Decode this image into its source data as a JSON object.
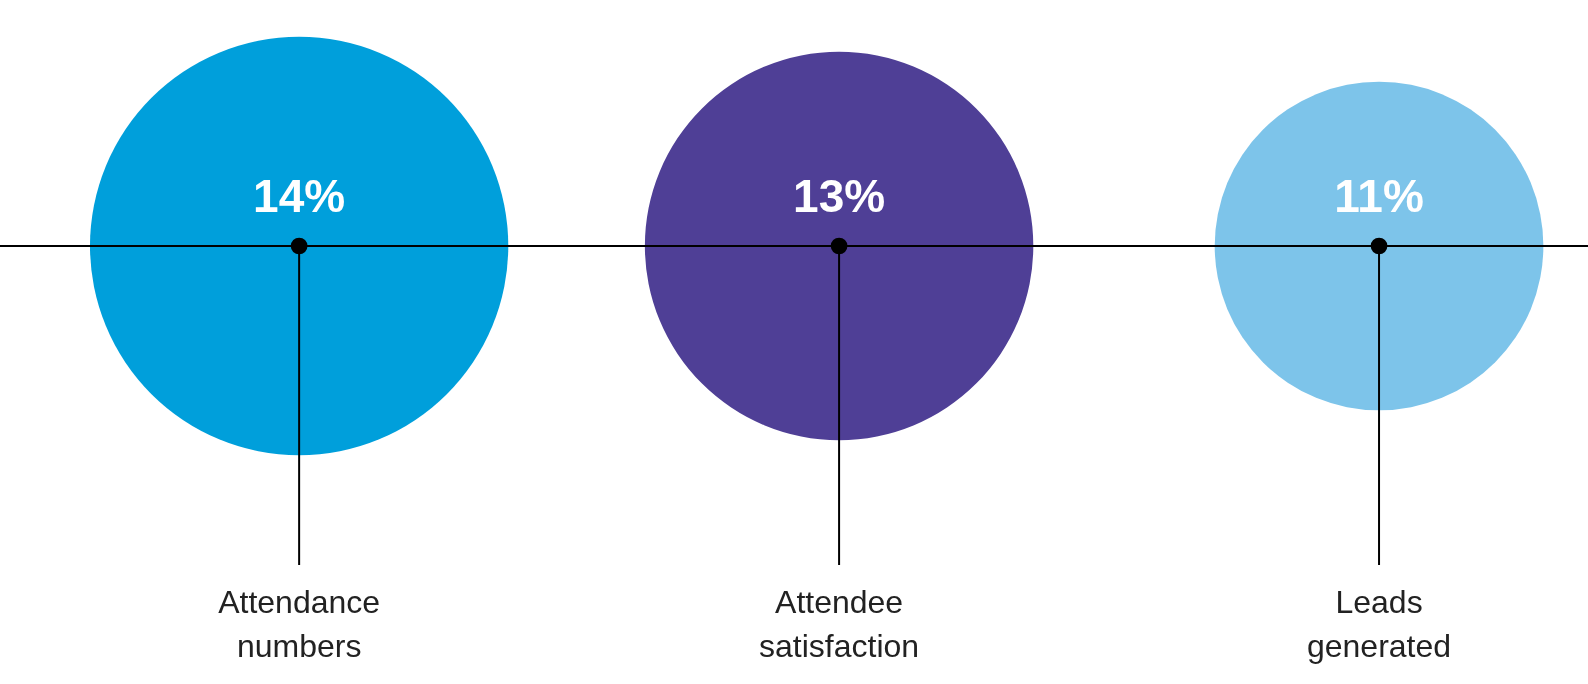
{
  "chart_data": {
    "type": "other",
    "categories": [
      "Attendance numbers",
      "Attendee satisfaction",
      "Leads generated"
    ],
    "values": [
      14,
      13,
      11
    ],
    "colors": [
      "#009fdb",
      "#4f3f96",
      "#7dc4ea"
    ],
    "value_labels": [
      "14%",
      "13%",
      "11%"
    ]
  }
}
